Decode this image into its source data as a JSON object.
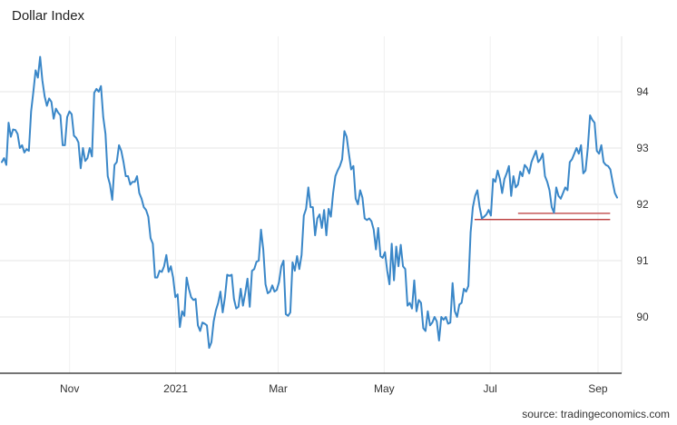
{
  "chart_data": {
    "type": "line",
    "title": "Dollar Index",
    "xlabel": "",
    "ylabel": "",
    "ylim": [
      89.0,
      95.0
    ],
    "yticks": [
      90,
      91,
      92,
      93,
      94
    ],
    "y_axis_position": "right",
    "grid": true,
    "legend": "none",
    "x_tick_labels": [
      "Nov",
      "2021",
      "Mar",
      "May",
      "Jul",
      "Sep"
    ],
    "x_tick_positions": [
      39,
      100,
      159,
      220,
      281,
      343
    ],
    "xlim": [
      0,
      354
    ],
    "line_color": "#3a87c8",
    "reference_lines": [
      {
        "y": 91.84,
        "x_start": 297,
        "x_end": 350,
        "color": "#b22222"
      },
      {
        "y": 91.73,
        "x_start": 272,
        "x_end": 350,
        "color": "#b22222"
      }
    ],
    "series": [
      {
        "values": [
          92.75,
          92.82,
          92.7,
          93.45,
          93.2,
          93.33,
          93.32,
          93.25,
          93.0,
          93.05,
          92.92,
          92.98,
          92.95,
          93.65,
          94.0,
          94.38,
          94.25,
          94.62,
          94.2,
          93.92,
          93.75,
          93.88,
          93.82,
          93.52,
          93.7,
          93.63,
          93.58,
          93.05,
          93.05,
          93.55,
          93.65,
          93.6,
          93.22,
          93.18,
          93.1,
          92.64,
          93.0,
          92.77,
          92.82,
          93.0,
          92.85,
          93.98,
          94.05,
          94.0,
          94.1,
          93.55,
          93.25,
          92.5,
          92.35,
          92.08,
          92.7,
          92.75,
          93.05,
          92.95,
          92.75,
          92.5,
          92.5,
          92.35,
          92.4,
          92.4,
          92.5,
          92.2,
          92.1,
          91.95,
          91.9,
          91.78,
          91.4,
          91.3,
          90.7,
          90.7,
          90.82,
          90.8,
          90.9,
          91.1,
          90.8,
          90.9,
          90.7,
          90.35,
          90.4,
          89.82,
          90.1,
          90.02,
          90.7,
          90.5,
          90.35,
          90.3,
          90.32,
          89.85,
          89.75,
          89.9,
          89.88,
          89.85,
          89.45,
          89.55,
          89.92,
          90.12,
          90.25,
          90.45,
          90.08,
          90.35,
          90.75,
          90.73,
          90.75,
          90.32,
          90.15,
          90.18,
          90.5,
          90.2,
          90.42,
          90.68,
          90.18,
          90.82,
          90.85,
          90.98,
          91.0,
          91.55,
          91.2,
          90.58,
          90.42,
          90.45,
          90.56,
          90.45,
          90.48,
          90.62,
          90.9,
          91.0,
          90.05,
          90.02,
          90.08,
          90.97,
          90.82,
          91.08,
          90.85,
          91.1,
          91.8,
          91.92,
          92.3,
          91.95,
          91.95,
          91.45,
          91.75,
          91.82,
          91.58,
          91.9,
          91.45,
          91.92,
          91.78,
          92.2,
          92.5,
          92.6,
          92.68,
          92.8,
          93.3,
          93.2,
          92.9,
          92.62,
          92.68,
          92.1,
          92.0,
          92.25,
          92.12,
          91.75,
          91.72,
          91.75,
          91.7,
          91.55,
          91.2,
          91.58,
          91.08,
          91.05,
          91.15,
          90.82,
          90.58,
          91.3,
          90.65,
          91.25,
          90.9,
          91.28,
          90.9,
          90.85,
          90.2,
          90.25,
          90.15,
          90.65,
          90.1,
          90.3,
          90.25,
          89.8,
          89.75,
          90.1,
          89.85,
          89.9,
          90.0,
          89.92,
          89.58,
          90.0,
          89.95,
          90.0,
          89.88,
          89.9,
          90.6,
          90.1,
          90.0,
          90.22,
          90.25,
          90.5,
          90.45,
          90.55,
          91.5,
          91.95,
          92.15,
          92.25,
          91.95,
          91.75,
          91.78,
          91.82,
          91.9,
          91.8,
          92.45,
          92.4,
          92.6,
          92.45,
          92.2,
          92.45,
          92.55,
          92.68,
          92.15,
          92.5,
          92.3,
          92.35,
          92.58,
          92.5,
          92.7,
          92.65,
          92.55,
          92.75,
          92.85,
          92.95,
          92.75,
          92.8,
          92.9,
          92.5,
          92.4,
          92.25,
          91.95,
          91.85,
          92.3,
          92.15,
          92.1,
          92.2,
          92.3,
          92.25,
          92.75,
          92.8,
          92.9,
          93.0,
          92.9,
          93.05,
          92.55,
          92.6,
          93.0,
          93.58,
          93.5,
          93.45,
          92.95,
          92.9,
          93.05,
          92.75,
          92.7,
          92.68,
          92.62,
          92.4,
          92.2,
          92.12
        ]
      }
    ]
  },
  "source_text": "source: tradingeconomics.com"
}
